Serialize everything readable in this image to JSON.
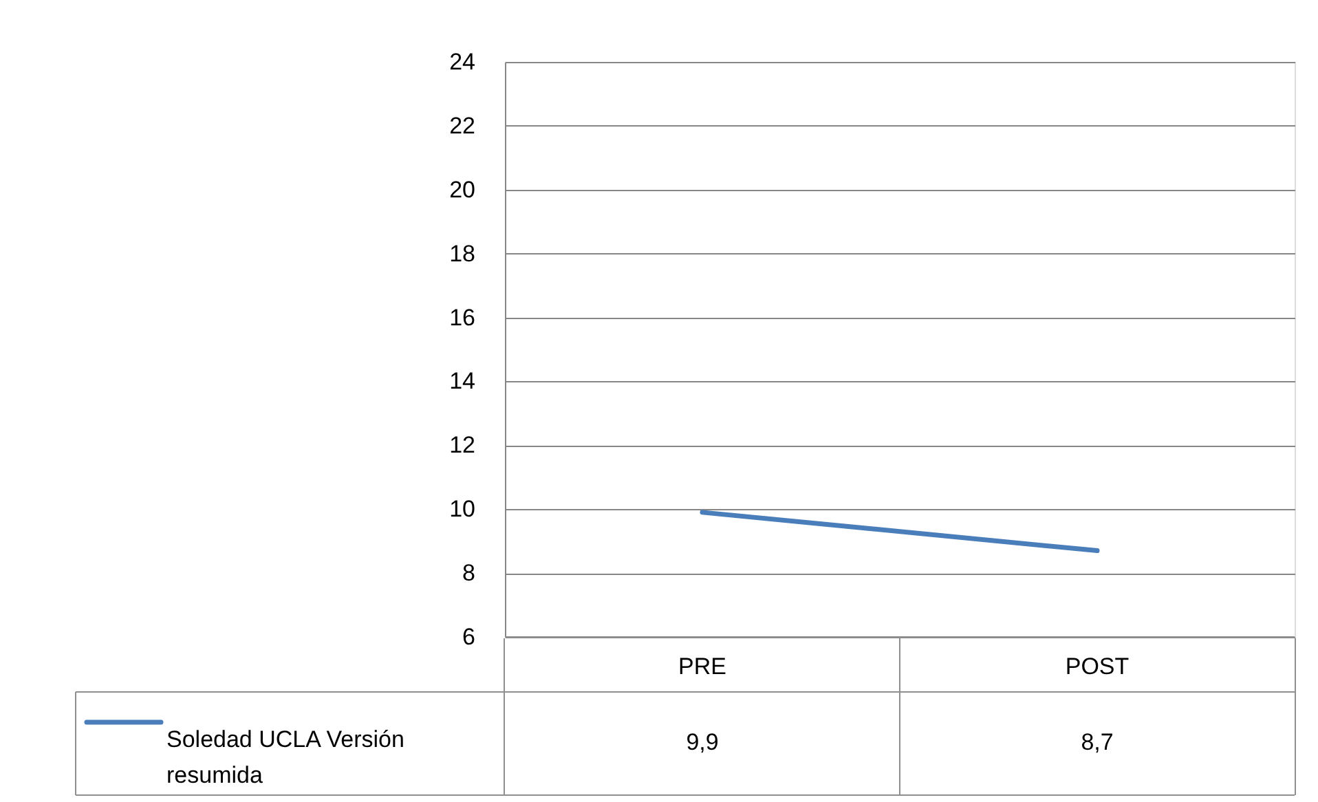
{
  "chart_data": {
    "type": "line",
    "categories": [
      "PRE",
      "POST"
    ],
    "series": [
      {
        "name": "Soledad UCLA Versión resumida",
        "color": "#4a7ebb",
        "values": [
          9.9,
          8.7
        ],
        "value_labels": [
          "9,9",
          "8,7"
        ]
      }
    ],
    "ylim": [
      6,
      24
    ],
    "yticks": [
      6,
      8,
      10,
      12,
      14,
      16,
      18,
      20,
      22,
      24
    ],
    "grid": "y",
    "legend": "bottom left"
  }
}
